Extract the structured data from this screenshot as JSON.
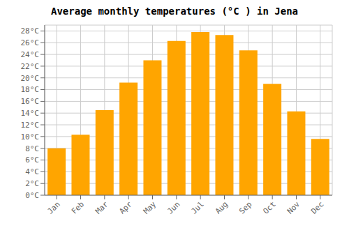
{
  "chart_data": {
    "type": "bar",
    "title": "Average monthly temperatures (°C ) in Jena",
    "categories": [
      "Jan",
      "Feb",
      "Mar",
      "Apr",
      "May",
      "Jun",
      "Jul",
      "Aug",
      "Sep",
      "Oct",
      "Nov",
      "Dec"
    ],
    "values": [
      8.0,
      10.3,
      14.5,
      19.2,
      23.0,
      26.3,
      27.8,
      27.3,
      24.7,
      19.0,
      14.3,
      9.6
    ],
    "color": "#FFA500",
    "ylim": [
      0,
      29
    ],
    "yticks": [
      {
        "value": 0,
        "label": "0°C"
      },
      {
        "value": 2,
        "label": "2°C"
      },
      {
        "value": 4,
        "label": "4°C"
      },
      {
        "value": 6,
        "label": "6°C"
      },
      {
        "value": 8,
        "label": "8°C"
      },
      {
        "value": 10,
        "label": "10°C"
      },
      {
        "value": 12,
        "label": "12°C"
      },
      {
        "value": 14,
        "label": "14°C"
      },
      {
        "value": 16,
        "label": "16°C"
      },
      {
        "value": 18,
        "label": "18°C"
      },
      {
        "value": 20,
        "label": "20°C"
      },
      {
        "value": 22,
        "label": "22°C"
      },
      {
        "value": 24,
        "label": "24°C"
      },
      {
        "value": 26,
        "label": "26°C"
      },
      {
        "value": 28,
        "label": "28°C"
      }
    ],
    "grid": true
  }
}
